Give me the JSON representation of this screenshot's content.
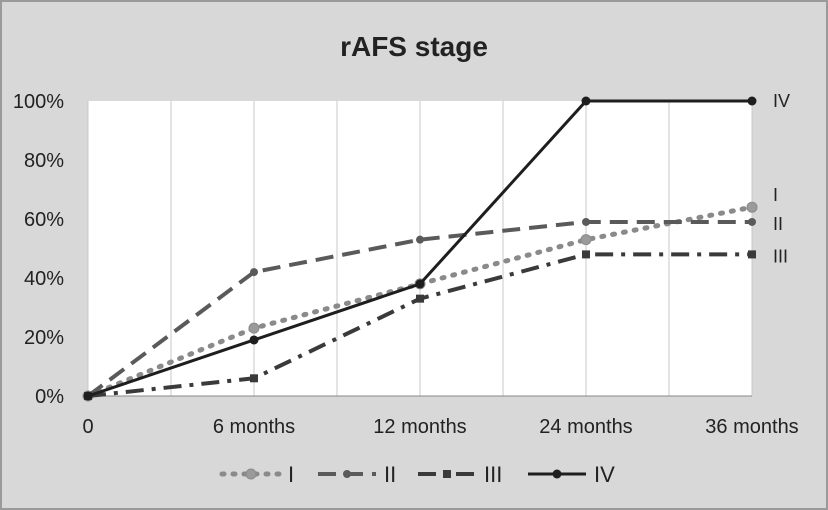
{
  "chart_data": {
    "type": "line",
    "title": "rAFS stage",
    "categories": [
      "0",
      "6 months",
      "12 months",
      "24 months",
      "36 months"
    ],
    "y_ticks": [
      "0%",
      "20%",
      "40%",
      "60%",
      "80%",
      "100%"
    ],
    "ylim": [
      0,
      100
    ],
    "grid": "vertical",
    "legend": "bottom",
    "series": [
      {
        "name": "I",
        "values": [
          0,
          23,
          38,
          53,
          64
        ],
        "color": "#8a8a8a",
        "style": "dotted",
        "end_label": "I"
      },
      {
        "name": "II",
        "values": [
          0,
          42,
          53,
          59,
          59
        ],
        "color": "#5a5a5a",
        "style": "dashed",
        "end_label": "II"
      },
      {
        "name": "III",
        "values": [
          0,
          6,
          33,
          48,
          48
        ],
        "color": "#3a3a3a",
        "style": "dashdot",
        "end_label": "III"
      },
      {
        "name": "IV",
        "values": [
          0,
          19,
          38,
          100,
          100
        ],
        "color": "#1e1e1e",
        "style": "solid",
        "end_label": "IV"
      }
    ]
  }
}
